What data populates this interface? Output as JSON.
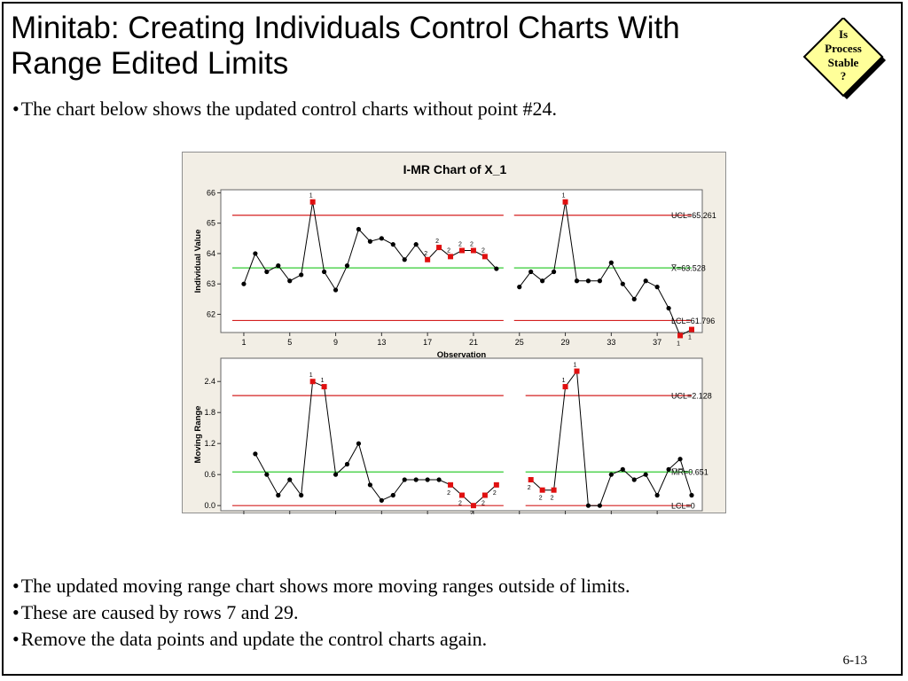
{
  "slide": {
    "title_line1": "Minitab: Creating Individuals Control Charts With",
    "title_line2": "Range Edited Limits",
    "badge_lines": [
      "Is",
      "Process",
      "Stable",
      "?"
    ],
    "bullet_top": "The chart below shows the updated control charts without point #24.",
    "bullets_bottom": [
      "The updated moving range chart shows more moving ranges outside of limits.",
      "These are caused by rows 7 and 29.",
      "Remove the data points and update the control charts again."
    ],
    "bullet_char": "•",
    "page_number": "6-13"
  },
  "colors": {
    "limit_line": "#d42020",
    "center_line": "#33cc33",
    "point": "#000000",
    "flagged_point": "#e01010",
    "panel_bg": "#f2eee5",
    "badge_fill": "#ffff99"
  },
  "chart_data": [
    {
      "type": "line",
      "title": "I-MR Chart of X_1",
      "xlabel": "Observation",
      "ylabel": "Individual Value",
      "xlim": [
        0,
        40
      ],
      "ylim": [
        61.4,
        66.1
      ],
      "x_ticks": [
        1,
        5,
        9,
        13,
        17,
        21,
        25,
        29,
        33,
        37
      ],
      "y_ticks": [
        62,
        63,
        64,
        65,
        66
      ],
      "gap_between": [
        23,
        25
      ],
      "x": [
        1,
        2,
        3,
        4,
        5,
        6,
        7,
        8,
        9,
        10,
        11,
        12,
        13,
        14,
        15,
        16,
        17,
        18,
        19,
        20,
        21,
        22,
        23,
        25,
        26,
        27,
        28,
        29,
        30,
        31,
        32,
        33,
        34,
        35,
        36,
        37,
        38,
        39,
        40
      ],
      "values": [
        63.0,
        64.0,
        63.4,
        63.6,
        63.1,
        63.3,
        65.7,
        63.4,
        62.8,
        63.6,
        64.8,
        64.4,
        64.5,
        64.3,
        63.8,
        64.3,
        63.8,
        64.2,
        63.9,
        64.1,
        64.1,
        63.9,
        63.5,
        62.9,
        63.4,
        63.1,
        63.4,
        65.7,
        63.1,
        63.1,
        63.1,
        63.7,
        63.0,
        62.5,
        63.1,
        62.9,
        62.2,
        61.3,
        61.5
      ],
      "flags": [
        {
          "x": 7,
          "label": "1"
        },
        {
          "x": 17,
          "label": "2"
        },
        {
          "x": 18,
          "label": "2"
        },
        {
          "x": 19,
          "label": "2"
        },
        {
          "x": 20,
          "label": "2"
        },
        {
          "x": 21,
          "label": "2"
        },
        {
          "x": 22,
          "label": "2"
        },
        {
          "x": 29,
          "label": "1"
        },
        {
          "x": 39,
          "label": "1"
        },
        {
          "x": 40,
          "label": "1"
        }
      ],
      "ucl": 65.261,
      "center": 63.528,
      "lcl": 61.796,
      "ucl_label": "UCL=65.261",
      "center_label": "X̅=63.528",
      "lcl_label": "LCL=61.796"
    },
    {
      "type": "line",
      "title": "",
      "xlabel": "Observation",
      "ylabel": "Moving Range",
      "xlim": [
        0,
        40
      ],
      "ylim": [
        -0.1,
        2.85
      ],
      "x_ticks": [
        1,
        5,
        9,
        13,
        17,
        21,
        25,
        29,
        33,
        37
      ],
      "y_ticks": [
        0.0,
        0.6,
        1.2,
        1.8,
        2.4
      ],
      "y_tick_labels": [
        "0.0",
        "0.6",
        "1.2",
        "1.8",
        "2.4"
      ],
      "gap_between": [
        23,
        26
      ],
      "x": [
        2,
        3,
        4,
        5,
        6,
        7,
        8,
        9,
        10,
        11,
        12,
        13,
        14,
        15,
        16,
        17,
        18,
        19,
        20,
        21,
        22,
        23,
        26,
        27,
        28,
        29,
        30,
        31,
        32,
        33,
        34,
        35,
        36,
        37,
        38,
        39,
        40
      ],
      "values": [
        1.0,
        0.6,
        0.2,
        0.5,
        0.2,
        2.4,
        2.3,
        0.6,
        0.8,
        1.2,
        0.4,
        0.1,
        0.2,
        0.5,
        0.5,
        0.5,
        0.5,
        0.4,
        0.2,
        0.0,
        0.2,
        0.4,
        0.5,
        0.3,
        0.3,
        2.3,
        2.6,
        0.0,
        0.0,
        0.6,
        0.7,
        0.5,
        0.6,
        0.2,
        0.7,
        0.9,
        0.2
      ],
      "flags": [
        {
          "x": 7,
          "label": "1"
        },
        {
          "x": 8,
          "label": "1"
        },
        {
          "x": 19,
          "label": "2"
        },
        {
          "x": 20,
          "label": "2"
        },
        {
          "x": 21,
          "label": "2"
        },
        {
          "x": 22,
          "label": "2"
        },
        {
          "x": 23,
          "label": "2"
        },
        {
          "x": 26,
          "label": "2"
        },
        {
          "x": 27,
          "label": "2"
        },
        {
          "x": 28,
          "label": "2"
        },
        {
          "x": 29,
          "label": "1"
        },
        {
          "x": 30,
          "label": "1"
        }
      ],
      "ucl": 2.128,
      "center": 0.651,
      "lcl": 0,
      "ucl_label": "UCL=2.128",
      "center_label": "M̅R̅=0.651",
      "lcl_label": "LCL=0"
    }
  ]
}
